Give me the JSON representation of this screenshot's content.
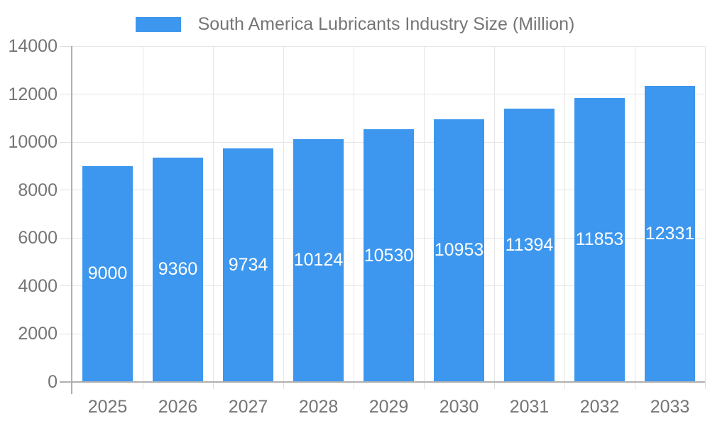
{
  "chart_data": {
    "type": "bar",
    "title": "South America Lubricants Industry Size (Million)",
    "categories": [
      "2025",
      "2026",
      "2027",
      "2028",
      "2029",
      "2030",
      "2031",
      "2032",
      "2033"
    ],
    "series": [
      {
        "name": "South America Lubricants Industry Size (Million)",
        "values": [
          9000,
          9360,
          9734,
          10124,
          10530,
          10953,
          11394,
          11853,
          12331
        ]
      }
    ],
    "xlabel": "",
    "ylabel": "",
    "ylim": [
      0,
      14000
    ],
    "yticks": [
      0,
      2000,
      4000,
      6000,
      8000,
      10000,
      12000,
      14000
    ],
    "grid": true,
    "legend_position": "top-center",
    "bar_labels_visible": true,
    "colors": {
      "bar": "#3D97EE",
      "bar_label_text": "#ffffff",
      "axis_text": "#757575",
      "gridline": "#e6e6e6",
      "tick": "#e0e0e0",
      "axis_line": "#b0b0b0",
      "background": "#ffffff"
    }
  }
}
